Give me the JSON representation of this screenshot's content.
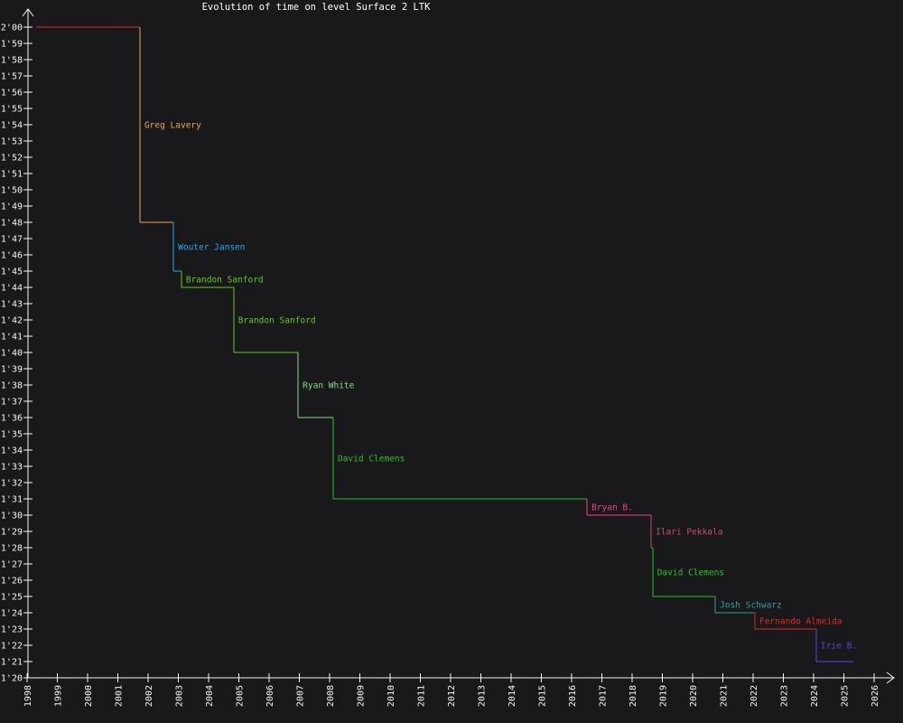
{
  "title": "Evolution of time on level Surface 2 LTK",
  "colors": {
    "background": "#19191b",
    "axis": "#f5f5f5",
    "tick_text": "#f5f5f5",
    "title_text": "#ffffff"
  },
  "chart_data": {
    "type": "line",
    "subtype": "step-record-progression",
    "title": "Evolution of time on level Surface 2 LTK",
    "grid": false,
    "legend": "none",
    "x_axis": {
      "label": "",
      "ticks": [
        1998,
        1999,
        2000,
        2001,
        2002,
        2003,
        2004,
        2005,
        2006,
        2007,
        2008,
        2009,
        2010,
        2011,
        2012,
        2013,
        2014,
        2015,
        2016,
        2017,
        2018,
        2019,
        2020,
        2021,
        2022,
        2023,
        2024,
        2025,
        2026
      ],
      "range": [
        1998,
        2026.65
      ],
      "tick_label_rotation_deg": -90
    },
    "y_axis": {
      "label": "",
      "labels": [
        "2'00",
        "1'59",
        "1'58",
        "1'57",
        "1'56",
        "1'55",
        "1'54",
        "1'53",
        "1'52",
        "1'51",
        "1'50",
        "1'49",
        "1'48",
        "1'47",
        "1'46",
        "1'45",
        "1'44",
        "1'43",
        "1'42",
        "1'41",
        "1'40",
        "1'39",
        "1'38",
        "1'37",
        "1'36",
        "1'35",
        "1'34",
        "1'33",
        "1'32",
        "1'31",
        "1'30",
        "1'29",
        "1'28",
        "1'27",
        "1'26",
        "1'25",
        "1'24",
        "1'23",
        "1'22",
        "1'21",
        "1'20"
      ],
      "range_seconds": [
        80,
        120
      ]
    },
    "records": [
      {
        "player": "",
        "time": "2'00",
        "seconds": 120,
        "year": 1998.3,
        "color": "#f52020"
      },
      {
        "player": "Greg Lavery",
        "time": "1'48",
        "seconds": 108,
        "year": 2001.73,
        "color": "#e7a45a"
      },
      {
        "player": "Wouter Jansen",
        "time": "1'45",
        "seconds": 105,
        "year": 2002.84,
        "color": "#22aaee"
      },
      {
        "player": "Brandon Sanford",
        "time": "1'44",
        "seconds": 104,
        "year": 2003.1,
        "color": "#61c926"
      },
      {
        "player": "Brandon Sanford",
        "time": "1'40",
        "seconds": 100,
        "year": 2004.83,
        "color": "#61c926"
      },
      {
        "player": "Ryan White",
        "time": "1'36",
        "seconds": 96,
        "year": 2006.96,
        "color": "#8cd78c"
      },
      {
        "player": "David Clemens",
        "time": "1'31",
        "seconds": 91,
        "year": 2008.12,
        "color": "#28c428"
      },
      {
        "player": "Bryan B.",
        "time": "1'30",
        "seconds": 90,
        "year": 2016.51,
        "color": "#f23e94"
      },
      {
        "player": "Ilari Pekkala",
        "time": "1'28",
        "seconds": 88,
        "year": 2018.63,
        "color": "#c94f62"
      },
      {
        "player": "David Clemens",
        "time": "1'25",
        "seconds": 85,
        "year": 2018.68,
        "color": "#28c428"
      },
      {
        "player": "Josh Schwarz",
        "time": "1'24",
        "seconds": 84,
        "year": 2020.75,
        "color": "#31a098"
      },
      {
        "player": "Fernando Almeida",
        "time": "1'23",
        "seconds": 83,
        "year": 2022.06,
        "color": "#e02a22"
      },
      {
        "player": "Irie B.",
        "time": "1'21",
        "seconds": 81,
        "year": 2024.09,
        "color": "#5a44e0"
      }
    ],
    "end_year": 2025.31
  }
}
